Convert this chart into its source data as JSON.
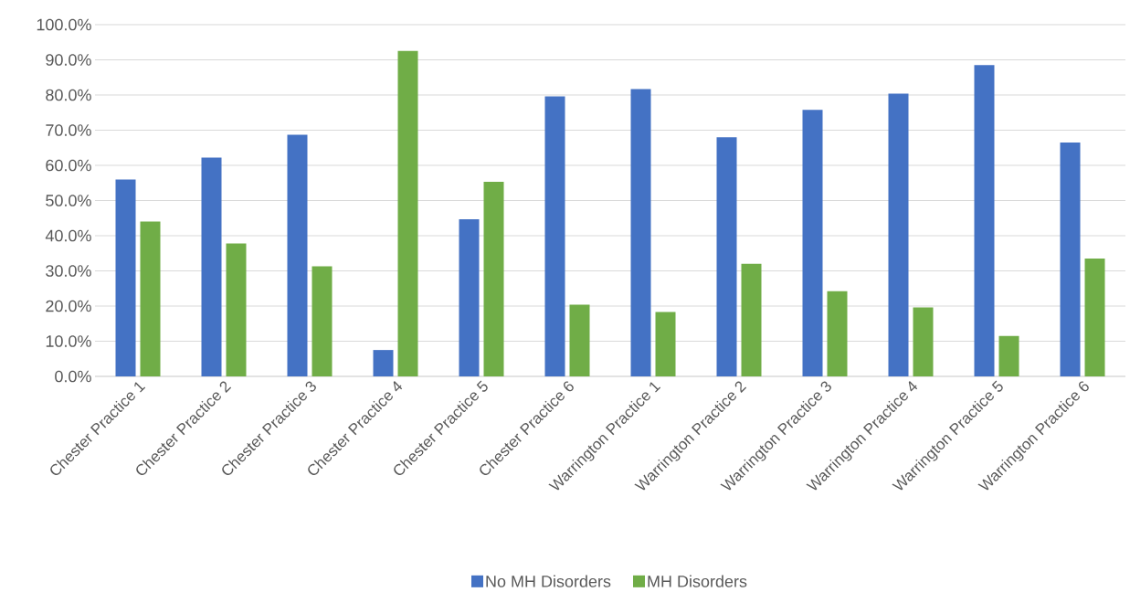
{
  "chart_data": {
    "type": "bar",
    "categories": [
      "Chester Practice 1",
      "Chester Practice 2",
      "Chester Practice 3",
      "Chester Practice 4",
      "Chester Practice 5",
      "Chester Practice 6",
      "Warrington Practice 1",
      "Warrington Practice 2",
      "Warrington Practice 3",
      "Warrington Practice 4",
      "Warrington Practice 5",
      "Warrington Practice 6"
    ],
    "series": [
      {
        "name": "No MH Disorders",
        "color": "#4472c4",
        "values": [
          56.0,
          62.2,
          68.7,
          7.5,
          44.7,
          79.6,
          81.7,
          68.0,
          75.8,
          80.4,
          88.5,
          66.5
        ]
      },
      {
        "name": "MH Disorders",
        "color": "#70ad47",
        "values": [
          44.0,
          37.8,
          31.3,
          92.5,
          55.3,
          20.4,
          18.3,
          32.0,
          24.2,
          19.6,
          11.5,
          33.5
        ]
      }
    ],
    "ylim": [
      0,
      100
    ],
    "yticks": [
      {
        "value": 0,
        "label": "0.0%"
      },
      {
        "value": 10,
        "label": "10.0%"
      },
      {
        "value": 20,
        "label": "20.0%"
      },
      {
        "value": 30,
        "label": "30.0%"
      },
      {
        "value": 40,
        "label": "40.0%"
      },
      {
        "value": 50,
        "label": "50.0%"
      },
      {
        "value": 60,
        "label": "60.0%"
      },
      {
        "value": 70,
        "label": "70.0%"
      },
      {
        "value": 80,
        "label": "80.0%"
      },
      {
        "value": 90,
        "label": "90.0%"
      },
      {
        "value": 100,
        "label": "100.0%"
      }
    ],
    "grid": "y",
    "legend": "bottom"
  }
}
